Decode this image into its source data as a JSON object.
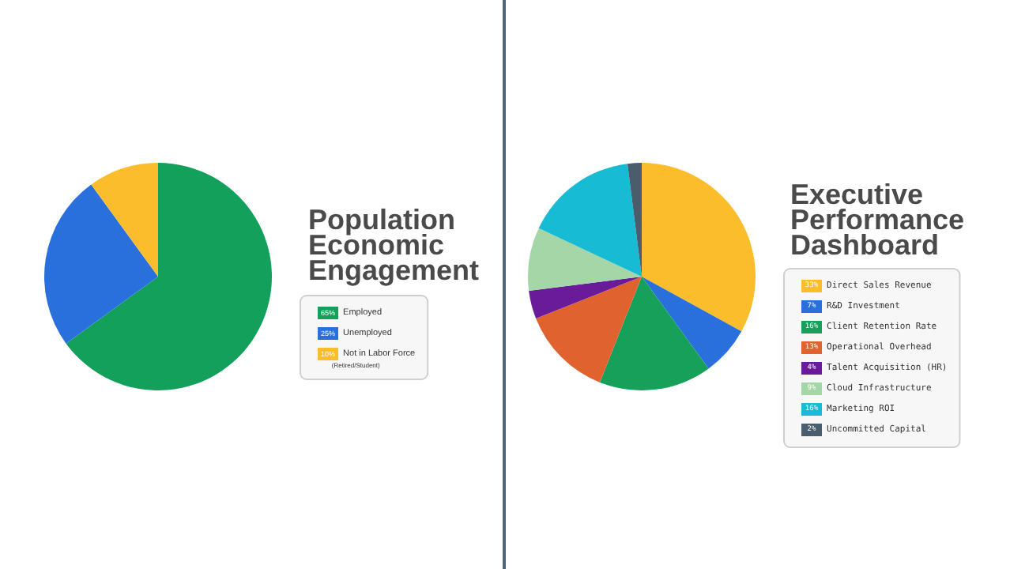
{
  "chart_data": [
    {
      "type": "pie",
      "title": "Population Economic Engagement",
      "categories": [
        "Employed",
        "Unemployed",
        "Not in Labor Force\n(Retired/Student)"
      ],
      "values": [
        65,
        25,
        10
      ],
      "colors": [
        "#12a05a",
        "#2a70dc",
        "#fbbd2c"
      ],
      "value_labels": [
        "65%",
        "25%",
        "10%"
      ],
      "legend": "right"
    },
    {
      "type": "pie",
      "title": "Executive Performance Dashboard",
      "categories": [
        "Direct Sales Revenue",
        "R&D Investment",
        "Client Retention Rate",
        "Operational Overhead",
        "Talent Acquisition (HR)",
        "Cloud Infrastructure",
        "Marketing ROI",
        "Uncommitted Capital"
      ],
      "values": [
        33,
        7,
        16,
        13,
        4,
        9,
        16,
        2
      ],
      "colors": [
        "#fbbd2c",
        "#2a70dc",
        "#16a05a",
        "#e0622e",
        "#6a1b9a",
        "#a5d6a7",
        "#17bcd4",
        "#4a5d6c"
      ],
      "value_labels": [
        "33%",
        "7%",
        "16%",
        "13%",
        "4%",
        "9%",
        "16%",
        "2%"
      ],
      "legend": "right"
    }
  ]
}
